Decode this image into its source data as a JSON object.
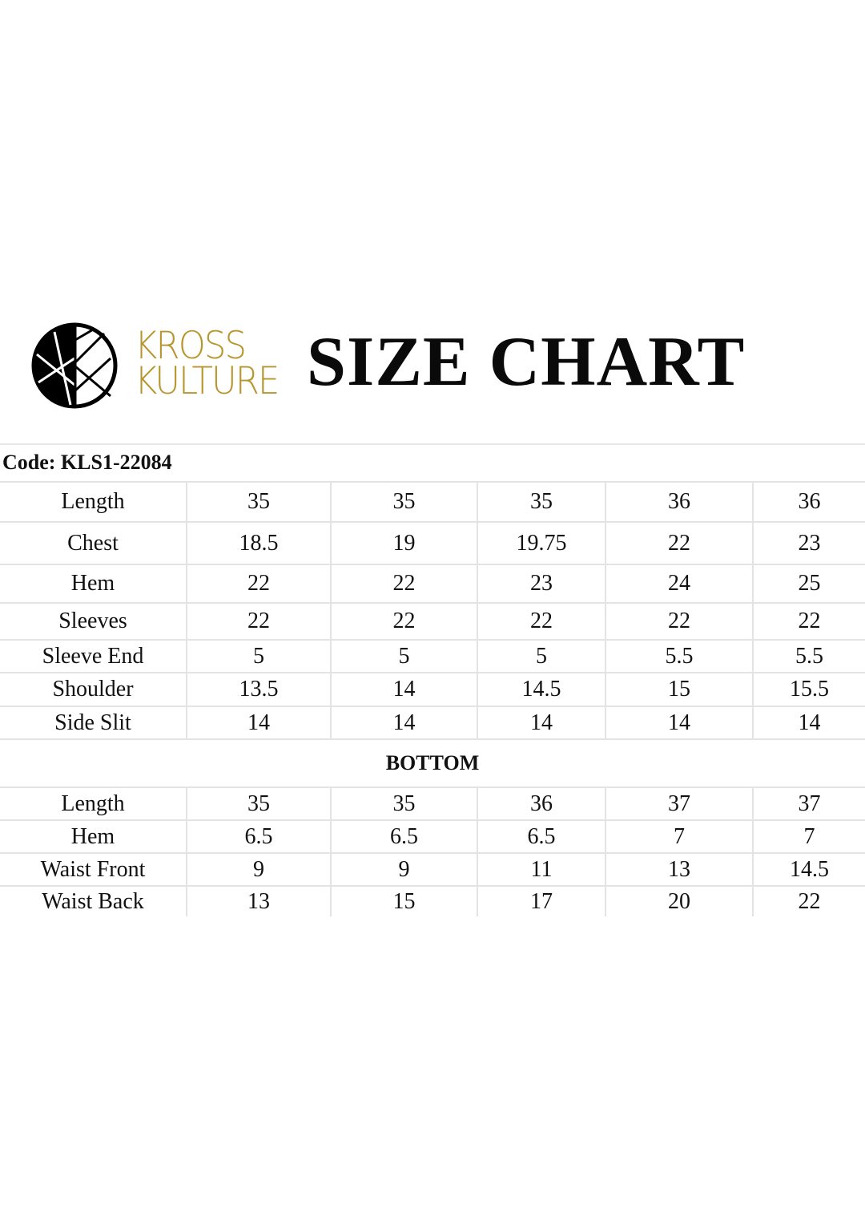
{
  "brand": {
    "name_line1": "KROSS",
    "name_line2": "KULTURE",
    "color": "#b8962e"
  },
  "title": "SIZE CHART",
  "code_label": "Code: KLS1-22084",
  "top": [
    {
      "label": "Length",
      "values": [
        "35",
        "35",
        "35",
        "36",
        "36"
      ]
    },
    {
      "label": "Chest",
      "values": [
        "18.5",
        "19",
        "19.75",
        "22",
        "23"
      ]
    },
    {
      "label": "Hem",
      "values": [
        "22",
        "22",
        "23",
        "24",
        "25"
      ]
    },
    {
      "label": "Sleeves",
      "values": [
        "22",
        "22",
        "22",
        "22",
        "22"
      ]
    },
    {
      "label": "Sleeve End",
      "values": [
        "5",
        "5",
        "5",
        "5.5",
        "5.5"
      ]
    },
    {
      "label": "Shoulder",
      "values": [
        "13.5",
        "14",
        "14.5",
        "15",
        "15.5"
      ]
    },
    {
      "label": "Side Slit",
      "values": [
        "14",
        "14",
        "14",
        "14",
        "14"
      ]
    }
  ],
  "bottom_heading": "BOTTOM",
  "bottom": [
    {
      "label": "Length",
      "values": [
        "35",
        "35",
        "36",
        "37",
        "37"
      ]
    },
    {
      "label": "Hem",
      "values": [
        "6.5",
        "6.5",
        "6.5",
        "7",
        "7"
      ]
    },
    {
      "label": "Waist Front",
      "values": [
        "9",
        "9",
        "11",
        "13",
        "14.5"
      ]
    },
    {
      "label": "Waist Back",
      "values": [
        "13",
        "15",
        "17",
        "20",
        "22"
      ]
    }
  ]
}
